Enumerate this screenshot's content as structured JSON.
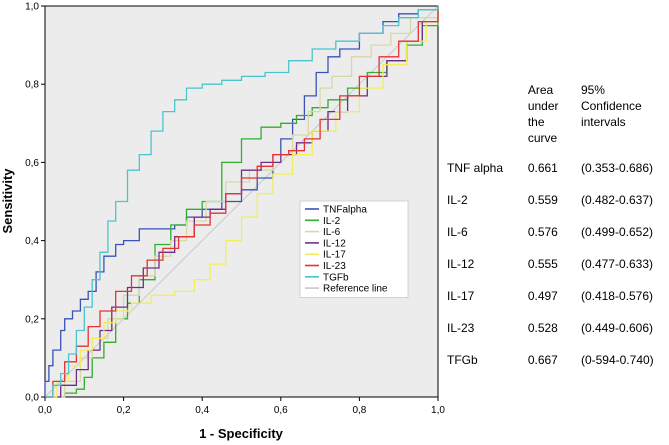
{
  "chart_data": {
    "type": "line",
    "title": "",
    "xlabel": "1 - Specificity",
    "ylabel": "Sensitivity",
    "xlim": [
      0,
      1
    ],
    "ylim": [
      0,
      1
    ],
    "xticks": [
      "0,0",
      "0,2",
      "0,4",
      "0,6",
      "0,8",
      "1,0"
    ],
    "yticks": [
      "0,0",
      "0,2",
      "0,4",
      "0,6",
      "0,8",
      "1,0"
    ],
    "grid": false,
    "legend_position": "center-right",
    "series": [
      {
        "name": "TNFalpha",
        "color": "#3a52b8",
        "points": [
          [
            0,
            0
          ],
          [
            0,
            0.04
          ],
          [
            0.01,
            0.08
          ],
          [
            0.02,
            0.12
          ],
          [
            0.04,
            0.17
          ],
          [
            0.05,
            0.2
          ],
          [
            0.07,
            0.22
          ],
          [
            0.09,
            0.25
          ],
          [
            0.11,
            0.27
          ],
          [
            0.13,
            0.32
          ],
          [
            0.15,
            0.36
          ],
          [
            0.18,
            0.39
          ],
          [
            0.2,
            0.4
          ],
          [
            0.24,
            0.43
          ],
          [
            0.3,
            0.43
          ],
          [
            0.33,
            0.44
          ],
          [
            0.36,
            0.46
          ],
          [
            0.4,
            0.48
          ],
          [
            0.45,
            0.5
          ],
          [
            0.5,
            0.53
          ],
          [
            0.54,
            0.56
          ],
          [
            0.58,
            0.62
          ],
          [
            0.6,
            0.66
          ],
          [
            0.63,
            0.71
          ],
          [
            0.66,
            0.77
          ],
          [
            0.69,
            0.83
          ],
          [
            0.72,
            0.87
          ],
          [
            0.75,
            0.89
          ],
          [
            0.8,
            0.93
          ],
          [
            0.86,
            0.96
          ],
          [
            0.9,
            0.98
          ],
          [
            0.95,
            0.99
          ],
          [
            1,
            1
          ]
        ]
      },
      {
        "name": "IL-2",
        "color": "#2fae2f",
        "points": [
          [
            0,
            0
          ],
          [
            0.05,
            0.01
          ],
          [
            0.08,
            0.02
          ],
          [
            0.1,
            0.05
          ],
          [
            0.12,
            0.1
          ],
          [
            0.15,
            0.14
          ],
          [
            0.18,
            0.2
          ],
          [
            0.21,
            0.24
          ],
          [
            0.24,
            0.3
          ],
          [
            0.28,
            0.39
          ],
          [
            0.32,
            0.44
          ],
          [
            0.36,
            0.48
          ],
          [
            0.4,
            0.5
          ],
          [
            0.45,
            0.6
          ],
          [
            0.5,
            0.66
          ],
          [
            0.55,
            0.69
          ],
          [
            0.6,
            0.7
          ],
          [
            0.64,
            0.72
          ],
          [
            0.68,
            0.74
          ],
          [
            0.72,
            0.76
          ],
          [
            0.77,
            0.79
          ],
          [
            0.82,
            0.83
          ],
          [
            0.87,
            0.86
          ],
          [
            0.92,
            0.9
          ],
          [
            0.96,
            0.95
          ],
          [
            1,
            1
          ]
        ]
      },
      {
        "name": "IL-6",
        "color": "#d8d8a6",
        "points": [
          [
            0,
            0
          ],
          [
            0.05,
            0.04
          ],
          [
            0.09,
            0.1
          ],
          [
            0.12,
            0.15
          ],
          [
            0.16,
            0.2
          ],
          [
            0.2,
            0.26
          ],
          [
            0.24,
            0.31
          ],
          [
            0.28,
            0.36
          ],
          [
            0.32,
            0.4
          ],
          [
            0.36,
            0.45
          ],
          [
            0.41,
            0.5
          ],
          [
            0.46,
            0.55
          ],
          [
            0.52,
            0.58
          ],
          [
            0.58,
            0.62
          ],
          [
            0.63,
            0.67
          ],
          [
            0.67,
            0.73
          ],
          [
            0.7,
            0.79
          ],
          [
            0.73,
            0.82
          ],
          [
            0.78,
            0.87
          ],
          [
            0.83,
            0.9
          ],
          [
            0.88,
            0.93
          ],
          [
            0.93,
            0.97
          ],
          [
            1,
            1
          ]
        ]
      },
      {
        "name": "IL-12",
        "color": "#6d2f86",
        "points": [
          [
            0,
            0
          ],
          [
            0.04,
            0.03
          ],
          [
            0.08,
            0.07
          ],
          [
            0.11,
            0.12
          ],
          [
            0.14,
            0.17
          ],
          [
            0.17,
            0.23
          ],
          [
            0.21,
            0.28
          ],
          [
            0.25,
            0.33
          ],
          [
            0.29,
            0.37
          ],
          [
            0.33,
            0.41
          ],
          [
            0.38,
            0.46
          ],
          [
            0.42,
            0.48
          ],
          [
            0.46,
            0.52
          ],
          [
            0.5,
            0.58
          ],
          [
            0.55,
            0.6
          ],
          [
            0.6,
            0.62
          ],
          [
            0.64,
            0.65
          ],
          [
            0.68,
            0.68
          ],
          [
            0.72,
            0.73
          ],
          [
            0.77,
            0.77
          ],
          [
            0.82,
            0.82
          ],
          [
            0.87,
            0.86
          ],
          [
            0.92,
            0.91
          ],
          [
            0.96,
            0.96
          ],
          [
            1,
            1
          ]
        ]
      },
      {
        "name": "IL-17",
        "color": "#f2ee58",
        "points": [
          [
            0,
            0
          ],
          [
            0.03,
            0.04
          ],
          [
            0.06,
            0.08
          ],
          [
            0.09,
            0.12
          ],
          [
            0.12,
            0.15
          ],
          [
            0.15,
            0.19
          ],
          [
            0.18,
            0.22
          ],
          [
            0.22,
            0.24
          ],
          [
            0.27,
            0.26
          ],
          [
            0.33,
            0.27
          ],
          [
            0.38,
            0.3
          ],
          [
            0.42,
            0.34
          ],
          [
            0.46,
            0.4
          ],
          [
            0.5,
            0.46
          ],
          [
            0.54,
            0.52
          ],
          [
            0.58,
            0.57
          ],
          [
            0.63,
            0.62
          ],
          [
            0.68,
            0.68
          ],
          [
            0.74,
            0.73
          ],
          [
            0.8,
            0.79
          ],
          [
            0.86,
            0.85
          ],
          [
            0.92,
            0.91
          ],
          [
            0.97,
            0.96
          ],
          [
            1,
            1
          ]
        ]
      },
      {
        "name": "IL-23",
        "color": "#e53232",
        "points": [
          [
            0,
            0
          ],
          [
            0.02,
            0.04
          ],
          [
            0.05,
            0.09
          ],
          [
            0.08,
            0.13
          ],
          [
            0.11,
            0.18
          ],
          [
            0.14,
            0.22
          ],
          [
            0.18,
            0.27
          ],
          [
            0.22,
            0.31
          ],
          [
            0.26,
            0.35
          ],
          [
            0.3,
            0.38
          ],
          [
            0.34,
            0.41
          ],
          [
            0.38,
            0.44
          ],
          [
            0.42,
            0.47
          ],
          [
            0.46,
            0.52
          ],
          [
            0.5,
            0.56
          ],
          [
            0.54,
            0.59
          ],
          [
            0.58,
            0.62
          ],
          [
            0.62,
            0.63
          ],
          [
            0.66,
            0.66
          ],
          [
            0.7,
            0.71
          ],
          [
            0.75,
            0.77
          ],
          [
            0.8,
            0.82
          ],
          [
            0.85,
            0.87
          ],
          [
            0.9,
            0.91
          ],
          [
            0.95,
            0.96
          ],
          [
            1,
            1
          ]
        ]
      },
      {
        "name": "TGFb",
        "color": "#4ac5cf",
        "points": [
          [
            0,
            0
          ],
          [
            0.02,
            0.03
          ],
          [
            0.04,
            0.06
          ],
          [
            0.06,
            0.11
          ],
          [
            0.08,
            0.17
          ],
          [
            0.1,
            0.23
          ],
          [
            0.12,
            0.3
          ],
          [
            0.14,
            0.37
          ],
          [
            0.16,
            0.45
          ],
          [
            0.18,
            0.5
          ],
          [
            0.21,
            0.58
          ],
          [
            0.24,
            0.62
          ],
          [
            0.27,
            0.68
          ],
          [
            0.3,
            0.73
          ],
          [
            0.33,
            0.76
          ],
          [
            0.36,
            0.79
          ],
          [
            0.4,
            0.8
          ],
          [
            0.45,
            0.81
          ],
          [
            0.5,
            0.82
          ],
          [
            0.56,
            0.83
          ],
          [
            0.62,
            0.86
          ],
          [
            0.68,
            0.89
          ],
          [
            0.74,
            0.91
          ],
          [
            0.8,
            0.93
          ],
          [
            0.86,
            0.95
          ],
          [
            0.9,
            0.97
          ],
          [
            0.95,
            0.99
          ],
          [
            1,
            1
          ]
        ]
      },
      {
        "name": "Reference line",
        "color": "#c8c8c8",
        "points": [
          [
            0,
            0
          ],
          [
            1,
            1
          ]
        ]
      }
    ]
  },
  "table": {
    "headers": [
      "",
      "Area\nunder\nthe\ncurve",
      "95%\nConfidence\nintervals"
    ],
    "rows": [
      [
        "TNF alpha",
        "0.661",
        "(0.353-0.686)"
      ],
      [
        "IL-2",
        "0.559",
        "(0.482-0.637)"
      ],
      [
        "IL-6",
        "0.576",
        "(0.499-0.652)"
      ],
      [
        "IL-12",
        "0.555",
        "(0.477-0.633)"
      ],
      [
        "IL-17",
        "0.497",
        "(0.418-0.576)"
      ],
      [
        "IL-23",
        "0.528",
        "(0.449-0.606)"
      ],
      [
        "TFGb",
        "0.667",
        "(0-594-0.740)"
      ]
    ]
  }
}
